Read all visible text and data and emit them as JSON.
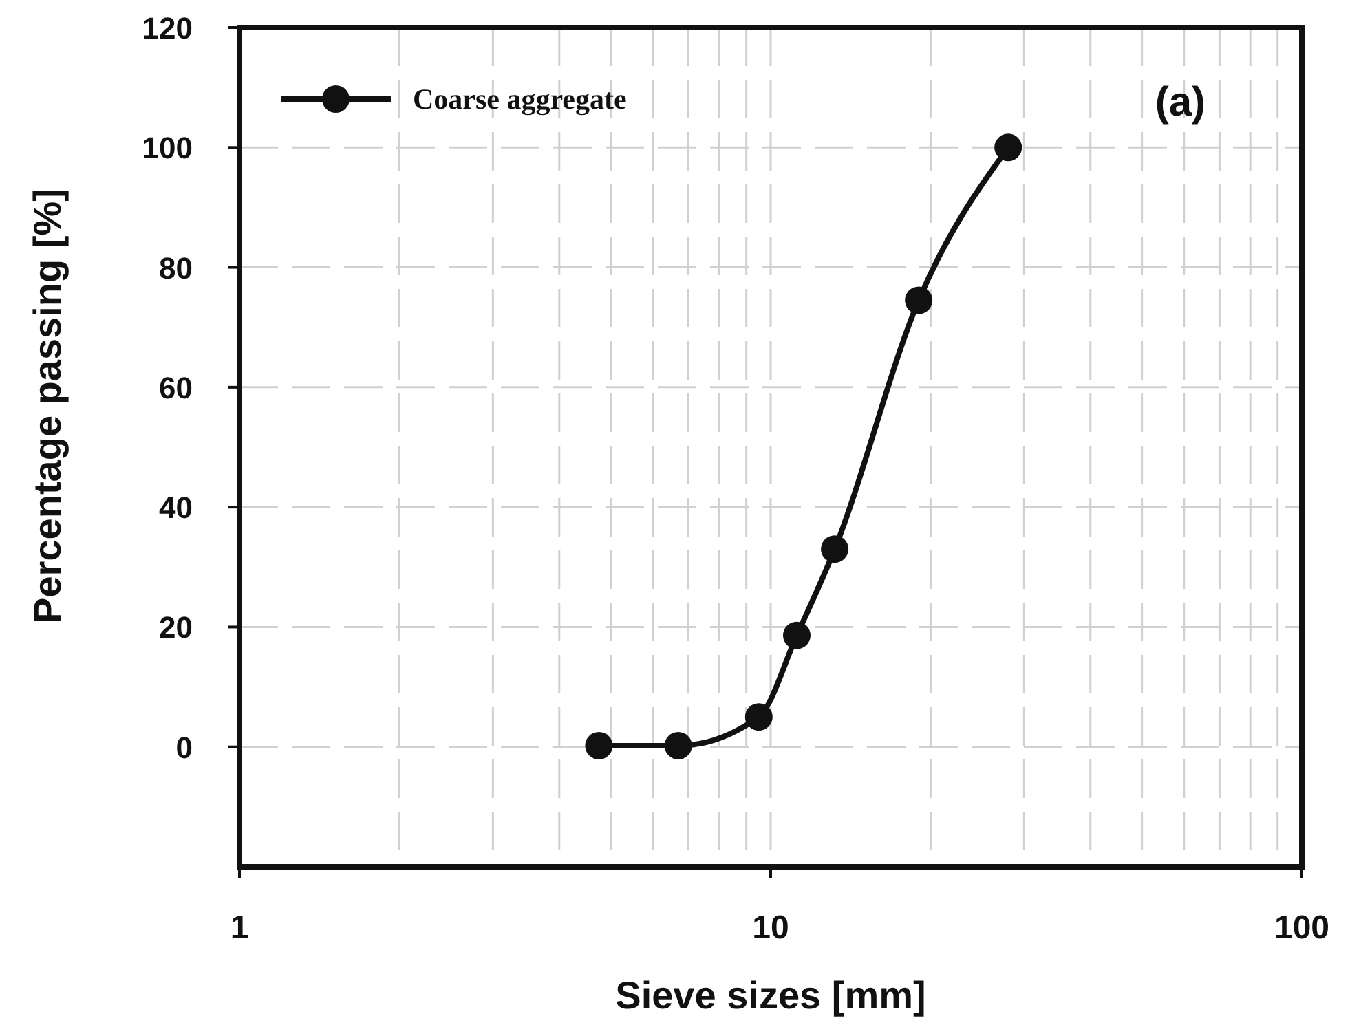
{
  "chart_data": {
    "type": "line",
    "xlabel": "Sieve sizes [mm]",
    "ylabel": "Percentage passing [%]",
    "annotations": [
      "(a)"
    ],
    "log": "x",
    "grid": true,
    "legend": "top left",
    "marker": "circle",
    "line_style": "solid",
    "xlim": [
      1,
      100
    ],
    "xticks": [
      1,
      {
        "value": 2,
        "label": null
      },
      {
        "value": 3,
        "label": null
      },
      {
        "value": 4,
        "label": null
      },
      {
        "value": 5,
        "label": null
      },
      {
        "value": 6,
        "label": null
      },
      {
        "value": 7,
        "label": null
      },
      {
        "value": 8,
        "label": null
      },
      {
        "value": 9,
        "label": null
      },
      10,
      {
        "value": 20,
        "label": null
      },
      {
        "value": 30,
        "label": null
      },
      {
        "value": 40,
        "label": null
      },
      {
        "value": 50,
        "label": null
      },
      {
        "value": 60,
        "label": null
      },
      {
        "value": 70,
        "label": null
      },
      {
        "value": 80,
        "label": null
      },
      {
        "value": 90,
        "label": null
      },
      100
    ],
    "ylim": [
      -20,
      120
    ],
    "yticks": [
      0,
      20,
      40,
      60,
      80,
      100,
      120
    ],
    "x": [
      4.75,
      6.7,
      9.5,
      11.2,
      13.2,
      19,
      28
    ],
    "series": [
      {
        "name": "Coarse aggregate",
        "color": "#111111",
        "values": [
          0.2,
          0.2,
          5,
          18.6,
          33,
          74.5,
          100
        ]
      }
    ]
  }
}
